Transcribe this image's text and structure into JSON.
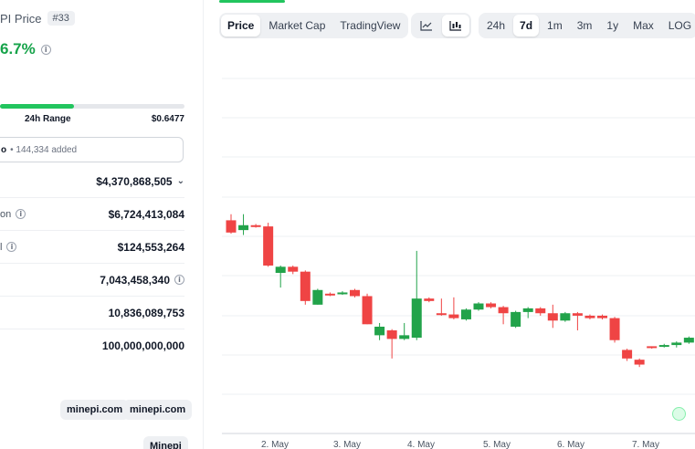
{
  "coin": {
    "price_title": "PI Price",
    "rank": "#33",
    "change_pct": "6.7%"
  },
  "range": {
    "label": "24h Range",
    "high": "$0.6477",
    "fill_fraction": 0.4
  },
  "watchlist": {
    "star_fragment": "o",
    "added_text": "• 144,334 added"
  },
  "stats": [
    {
      "label": "",
      "value": "$4,370,868,505",
      "has_info": false,
      "has_chevron": true
    },
    {
      "label": "on",
      "value": "$6,724,413,084",
      "has_info": true,
      "has_chevron": false
    },
    {
      "label": "l",
      "value": "$124,553,264",
      "has_info": true,
      "has_chevron": false
    },
    {
      "label": "",
      "value": "7,043,458,340",
      "has_info": true,
      "has_chevron": false,
      "value_info": true
    },
    {
      "label": "",
      "value": "10,836,089,753",
      "has_info": false,
      "has_chevron": false
    },
    {
      "label": "",
      "value": "100,000,000,000",
      "has_info": false,
      "has_chevron": false
    }
  ],
  "links": {
    "website_1": "minepi.com",
    "website_2": "minepi.com",
    "explorer": "Minepi"
  },
  "chart_tabs": {
    "price": "Price",
    "market_cap": "Market Cap",
    "tradingview": "TradingView"
  },
  "chart_type_icons": [
    "line-chart-icon",
    "candlestick-chart-icon"
  ],
  "ranges": {
    "r24h": "24h",
    "r7d": "7d",
    "r1m": "1m",
    "r3m": "3m",
    "r1y": "1y",
    "max": "Max",
    "log": "LOG"
  },
  "colors": {
    "up": "#22a34a",
    "down": "#ef4444",
    "accent": "#22c55e"
  },
  "chart_data": {
    "type": "candlestick",
    "x_tick_labels": [
      "2. May",
      "3. May",
      "4. May",
      "5. May",
      "6. May",
      "7. May"
    ],
    "y_relative": true,
    "candles": [
      {
        "o": 0.9,
        "c": 0.8,
        "h": 0.95,
        "l": 0.79
      },
      {
        "o": 0.82,
        "c": 0.86,
        "h": 0.95,
        "l": 0.78
      },
      {
        "o": 0.86,
        "c": 0.85,
        "h": 0.87,
        "l": 0.84
      },
      {
        "o": 0.85,
        "c": 0.53,
        "h": 0.88,
        "l": 0.52
      },
      {
        "o": 0.47,
        "c": 0.52,
        "h": 0.53,
        "l": 0.35
      },
      {
        "o": 0.52,
        "c": 0.48,
        "h": 0.53,
        "l": 0.46
      },
      {
        "o": 0.48,
        "c": 0.24,
        "h": 0.49,
        "l": 0.21
      },
      {
        "o": 0.21,
        "c": 0.33,
        "h": 0.34,
        "l": 0.21
      },
      {
        "o": 0.3,
        "c": 0.29,
        "h": 0.31,
        "l": 0.28
      },
      {
        "o": 0.3,
        "c": 0.31,
        "h": 0.32,
        "l": 0.29
      },
      {
        "o": 0.33,
        "c": 0.28,
        "h": 0.34,
        "l": 0.27
      },
      {
        "o": 0.28,
        "c": 0.05,
        "h": 0.3,
        "l": 0.05
      },
      {
        "o": -0.04,
        "c": 0.03,
        "h": 0.06,
        "l": -0.08
      },
      {
        "o": 0.0,
        "c": -0.07,
        "h": 0.01,
        "l": -0.23
      },
      {
        "o": -0.07,
        "c": -0.04,
        "h": 0.06,
        "l": -0.08
      },
      {
        "o": -0.06,
        "c": 0.26,
        "h": 0.65,
        "l": -0.08
      },
      {
        "o": 0.26,
        "c": 0.24,
        "h": 0.27,
        "l": 0.23
      },
      {
        "o": 0.14,
        "c": 0.13,
        "h": 0.26,
        "l": 0.12
      },
      {
        "o": 0.13,
        "c": 0.1,
        "h": 0.27,
        "l": 0.09
      },
      {
        "o": 0.09,
        "c": 0.17,
        "h": 0.18,
        "l": 0.08
      },
      {
        "o": 0.17,
        "c": 0.22,
        "h": 0.23,
        "l": 0.16
      },
      {
        "o": 0.22,
        "c": 0.19,
        "h": 0.23,
        "l": 0.18
      },
      {
        "o": 0.19,
        "c": 0.14,
        "h": 0.2,
        "l": 0.05
      },
      {
        "o": 0.03,
        "c": 0.15,
        "h": 0.16,
        "l": 0.02
      },
      {
        "o": 0.15,
        "c": 0.18,
        "h": 0.19,
        "l": 0.1
      },
      {
        "o": 0.18,
        "c": 0.14,
        "h": 0.19,
        "l": 0.12
      },
      {
        "o": 0.14,
        "c": 0.08,
        "h": 0.21,
        "l": 0.02
      },
      {
        "o": 0.08,
        "c": 0.14,
        "h": 0.15,
        "l": 0.07
      },
      {
        "o": 0.14,
        "c": 0.12,
        "h": 0.15,
        "l": 0.0
      },
      {
        "o": 0.12,
        "c": 0.1,
        "h": 0.13,
        "l": 0.09
      },
      {
        "o": 0.12,
        "c": 0.1,
        "h": 0.13,
        "l": 0.09
      },
      {
        "o": 0.1,
        "c": -0.08,
        "h": 0.11,
        "l": -0.1
      },
      {
        "o": -0.16,
        "c": -0.23,
        "h": -0.15,
        "l": -0.25
      },
      {
        "o": -0.24,
        "c": -0.28,
        "h": -0.23,
        "l": -0.3
      },
      {
        "o": -0.13,
        "c": -0.14,
        "h": -0.13,
        "l": -0.15
      },
      {
        "o": -0.13,
        "c": -0.12,
        "h": -0.11,
        "l": -0.14
      },
      {
        "o": -0.12,
        "c": -0.1,
        "h": -0.09,
        "l": -0.14
      },
      {
        "o": -0.1,
        "c": -0.06,
        "h": -0.05,
        "l": -0.11
      },
      {
        "o": -0.06,
        "c": 0.0,
        "h": 0.01,
        "l": -0.07
      }
    ]
  }
}
